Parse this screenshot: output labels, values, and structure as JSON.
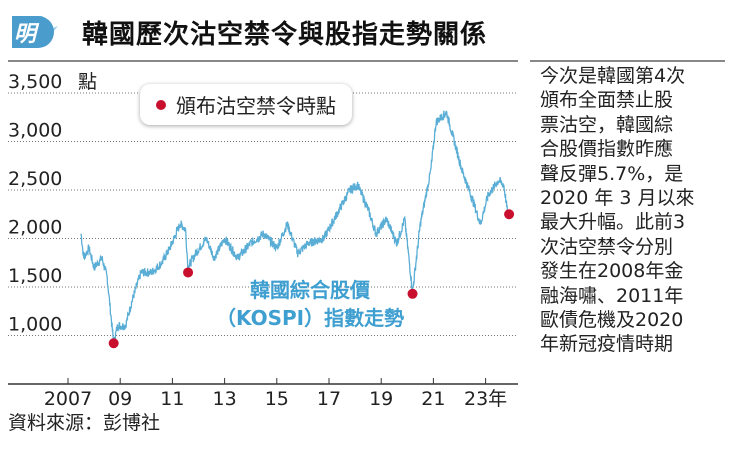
{
  "header": {
    "logo": "明",
    "title": "韓國歷次沽空禁令與股指走勢關係"
  },
  "legend": {
    "label": "頒布沽空禁令時點"
  },
  "annotation": {
    "line1": "韓國綜合股價",
    "line2": "（KOSPI）指數走勢"
  },
  "sidebar": {
    "lines": [
      "今次是韓國第4次",
      "頒布全面禁止股",
      "票沽空，韓國綜",
      "合股價指數昨應",
      "聲反彈5.7%，是",
      "2020 年 3 月以來",
      "最大升幅。此前3",
      "次沽空禁令分別",
      "發生在2008年金",
      "融海嘯、2011年",
      "歐債危機及2020",
      "年新冠疫情時期"
    ]
  },
  "source": "資料來源：彭博社",
  "colors": {
    "line": "#5aaed6",
    "marker": "#c8102e",
    "accent": "#3f9fd0"
  },
  "chart_data": {
    "type": "line",
    "title": "韓國歷次沽空禁令與股指走勢關係",
    "ylabel": "點",
    "ylim": [
      700,
      3500
    ],
    "yticks": [
      {
        "v": 3500,
        "label": "3,500"
      },
      {
        "v": 3000,
        "label": "3,000"
      },
      {
        "v": 2500,
        "label": "2,500"
      },
      {
        "v": 2000,
        "label": "2,000"
      },
      {
        "v": 1500,
        "label": "1,500"
      },
      {
        "v": 1000,
        "label": "1,000"
      }
    ],
    "y_unit": "點",
    "xticks": [
      {
        "v": 2007,
        "label": "2007"
      },
      {
        "v": 2009,
        "label": "09"
      },
      {
        "v": 2011,
        "label": "11"
      },
      {
        "v": 2013,
        "label": "13"
      },
      {
        "v": 2015,
        "label": "15"
      },
      {
        "v": 2017,
        "label": "17"
      },
      {
        "v": 2019,
        "label": "19"
      },
      {
        "v": 2021,
        "label": "21"
      },
      {
        "v": 2023,
        "label": "23年"
      }
    ],
    "series": [
      {
        "name": "韓國綜合股價（KOSPI）指數走勢",
        "points": [
          [
            2007.5,
            2050
          ],
          [
            2007.6,
            1800
          ],
          [
            2007.8,
            1900
          ],
          [
            2008.0,
            1700
          ],
          [
            2008.3,
            1800
          ],
          [
            2008.5,
            1600
          ],
          [
            2008.75,
            920
          ],
          [
            2008.9,
            1100
          ],
          [
            2009.2,
            1100
          ],
          [
            2009.5,
            1400
          ],
          [
            2009.8,
            1650
          ],
          [
            2010.2,
            1650
          ],
          [
            2010.6,
            1750
          ],
          [
            2010.9,
            1900
          ],
          [
            2011.3,
            2150
          ],
          [
            2011.5,
            2100
          ],
          [
            2011.6,
            1700
          ],
          [
            2011.9,
            1850
          ],
          [
            2012.3,
            2000
          ],
          [
            2012.6,
            1800
          ],
          [
            2013.0,
            2000
          ],
          [
            2013.5,
            1800
          ],
          [
            2014.0,
            1950
          ],
          [
            2014.5,
            2050
          ],
          [
            2015.0,
            1900
          ],
          [
            2015.4,
            2150
          ],
          [
            2015.8,
            1850
          ],
          [
            2016.2,
            1950
          ],
          [
            2016.8,
            2000
          ],
          [
            2017.3,
            2250
          ],
          [
            2017.8,
            2500
          ],
          [
            2018.1,
            2550
          ],
          [
            2018.5,
            2300
          ],
          [
            2018.8,
            2050
          ],
          [
            2019.2,
            2200
          ],
          [
            2019.6,
            1950
          ],
          [
            2019.9,
            2200
          ],
          [
            2020.2,
            1450
          ],
          [
            2020.5,
            2150
          ],
          [
            2020.9,
            2700
          ],
          [
            2021.1,
            3200
          ],
          [
            2021.5,
            3300
          ],
          [
            2021.8,
            3000
          ],
          [
            2022.1,
            2700
          ],
          [
            2022.5,
            2400
          ],
          [
            2022.8,
            2150
          ],
          [
            2023.1,
            2450
          ],
          [
            2023.5,
            2600
          ],
          [
            2023.7,
            2550
          ],
          [
            2023.85,
            2250
          ]
        ]
      }
    ],
    "markers": [
      {
        "x": 2008.75,
        "y": 920
      },
      {
        "x": 2011.6,
        "y": 1650
      },
      {
        "x": 2020.2,
        "y": 1430
      },
      {
        "x": 2023.9,
        "y": 2250
      }
    ],
    "legend_position": "top-left"
  }
}
